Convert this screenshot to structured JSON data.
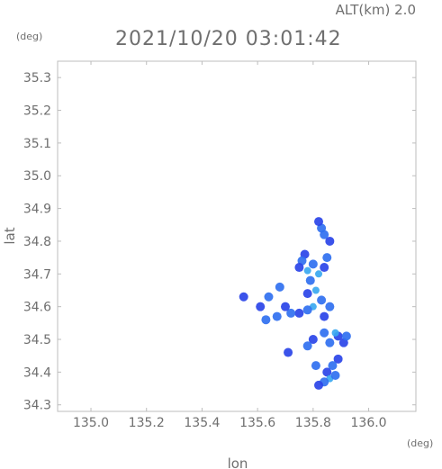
{
  "header": {
    "altitude_label": "ALT(km) 2.0",
    "timestamp": "2021/10/20 03:01:42",
    "y_unit": "(deg)",
    "x_unit": "(deg)"
  },
  "chart_data": {
    "type": "scatter",
    "title": "2021/10/20 03:01:42",
    "xlabel": "lon",
    "ylabel": "lat",
    "xlim": [
      134.88,
      136.17
    ],
    "ylim": [
      34.28,
      35.35
    ],
    "xticks": [
      "135.0",
      "135.2",
      "135.4",
      "135.6",
      "135.8",
      "136.0"
    ],
    "xtick_values": [
      135.0,
      135.2,
      135.4,
      135.6,
      135.8,
      136.0
    ],
    "yticks": [
      "34.3",
      "34.4",
      "34.5",
      "34.6",
      "34.7",
      "34.8",
      "34.9",
      "35.0",
      "35.1",
      "35.2",
      "35.3"
    ],
    "ytick_values": [
      34.3,
      34.4,
      34.5,
      34.6,
      34.7,
      34.8,
      34.9,
      35.0,
      35.1,
      35.2,
      35.3
    ],
    "grid": false,
    "colors": {
      "light": "#3aa8f0",
      "medium": "#3070f0",
      "strong": "#2a44e8"
    },
    "echo_cells": [
      {
        "lon": 135.83,
        "lat": 34.84,
        "intensity": "medium"
      },
      {
        "lon": 135.82,
        "lat": 34.86,
        "intensity": "strong"
      },
      {
        "lon": 135.84,
        "lat": 34.82,
        "intensity": "medium"
      },
      {
        "lon": 135.86,
        "lat": 34.8,
        "intensity": "strong"
      },
      {
        "lon": 135.77,
        "lat": 34.76,
        "intensity": "strong"
      },
      {
        "lon": 135.76,
        "lat": 34.74,
        "intensity": "medium"
      },
      {
        "lon": 135.75,
        "lat": 34.72,
        "intensity": "strong"
      },
      {
        "lon": 135.78,
        "lat": 34.71,
        "intensity": "light"
      },
      {
        "lon": 135.8,
        "lat": 34.73,
        "intensity": "medium"
      },
      {
        "lon": 135.82,
        "lat": 34.7,
        "intensity": "light"
      },
      {
        "lon": 135.84,
        "lat": 34.72,
        "intensity": "strong"
      },
      {
        "lon": 135.85,
        "lat": 34.75,
        "intensity": "medium"
      },
      {
        "lon": 135.79,
        "lat": 34.68,
        "intensity": "medium"
      },
      {
        "lon": 135.81,
        "lat": 34.65,
        "intensity": "light"
      },
      {
        "lon": 135.78,
        "lat": 34.64,
        "intensity": "strong"
      },
      {
        "lon": 135.83,
        "lat": 34.62,
        "intensity": "medium"
      },
      {
        "lon": 135.8,
        "lat": 34.6,
        "intensity": "light"
      },
      {
        "lon": 135.78,
        "lat": 34.59,
        "intensity": "medium"
      },
      {
        "lon": 135.75,
        "lat": 34.58,
        "intensity": "strong"
      },
      {
        "lon": 135.72,
        "lat": 34.58,
        "intensity": "medium"
      },
      {
        "lon": 135.7,
        "lat": 34.6,
        "intensity": "strong"
      },
      {
        "lon": 135.67,
        "lat": 34.57,
        "intensity": "medium"
      },
      {
        "lon": 135.84,
        "lat": 34.57,
        "intensity": "strong"
      },
      {
        "lon": 135.86,
        "lat": 34.6,
        "intensity": "medium"
      },
      {
        "lon": 135.64,
        "lat": 34.63,
        "intensity": "medium"
      },
      {
        "lon": 135.61,
        "lat": 34.6,
        "intensity": "strong"
      },
      {
        "lon": 135.63,
        "lat": 34.56,
        "intensity": "medium"
      },
      {
        "lon": 135.55,
        "lat": 34.63,
        "intensity": "strong"
      },
      {
        "lon": 135.68,
        "lat": 34.66,
        "intensity": "medium"
      },
      {
        "lon": 135.89,
        "lat": 34.51,
        "intensity": "strong"
      },
      {
        "lon": 135.86,
        "lat": 34.49,
        "intensity": "medium"
      },
      {
        "lon": 135.91,
        "lat": 34.49,
        "intensity": "strong"
      },
      {
        "lon": 135.88,
        "lat": 34.52,
        "intensity": "light"
      },
      {
        "lon": 135.84,
        "lat": 34.52,
        "intensity": "medium"
      },
      {
        "lon": 135.8,
        "lat": 34.5,
        "intensity": "strong"
      },
      {
        "lon": 135.78,
        "lat": 34.48,
        "intensity": "medium"
      },
      {
        "lon": 135.92,
        "lat": 34.51,
        "intensity": "medium"
      },
      {
        "lon": 135.89,
        "lat": 34.44,
        "intensity": "strong"
      },
      {
        "lon": 135.87,
        "lat": 34.42,
        "intensity": "medium"
      },
      {
        "lon": 135.85,
        "lat": 34.4,
        "intensity": "strong"
      },
      {
        "lon": 135.86,
        "lat": 34.38,
        "intensity": "light"
      },
      {
        "lon": 135.84,
        "lat": 34.37,
        "intensity": "medium"
      },
      {
        "lon": 135.82,
        "lat": 34.36,
        "intensity": "strong"
      },
      {
        "lon": 135.81,
        "lat": 34.42,
        "intensity": "medium"
      },
      {
        "lon": 135.88,
        "lat": 34.39,
        "intensity": "medium"
      },
      {
        "lon": 135.71,
        "lat": 34.46,
        "intensity": "strong"
      }
    ]
  }
}
